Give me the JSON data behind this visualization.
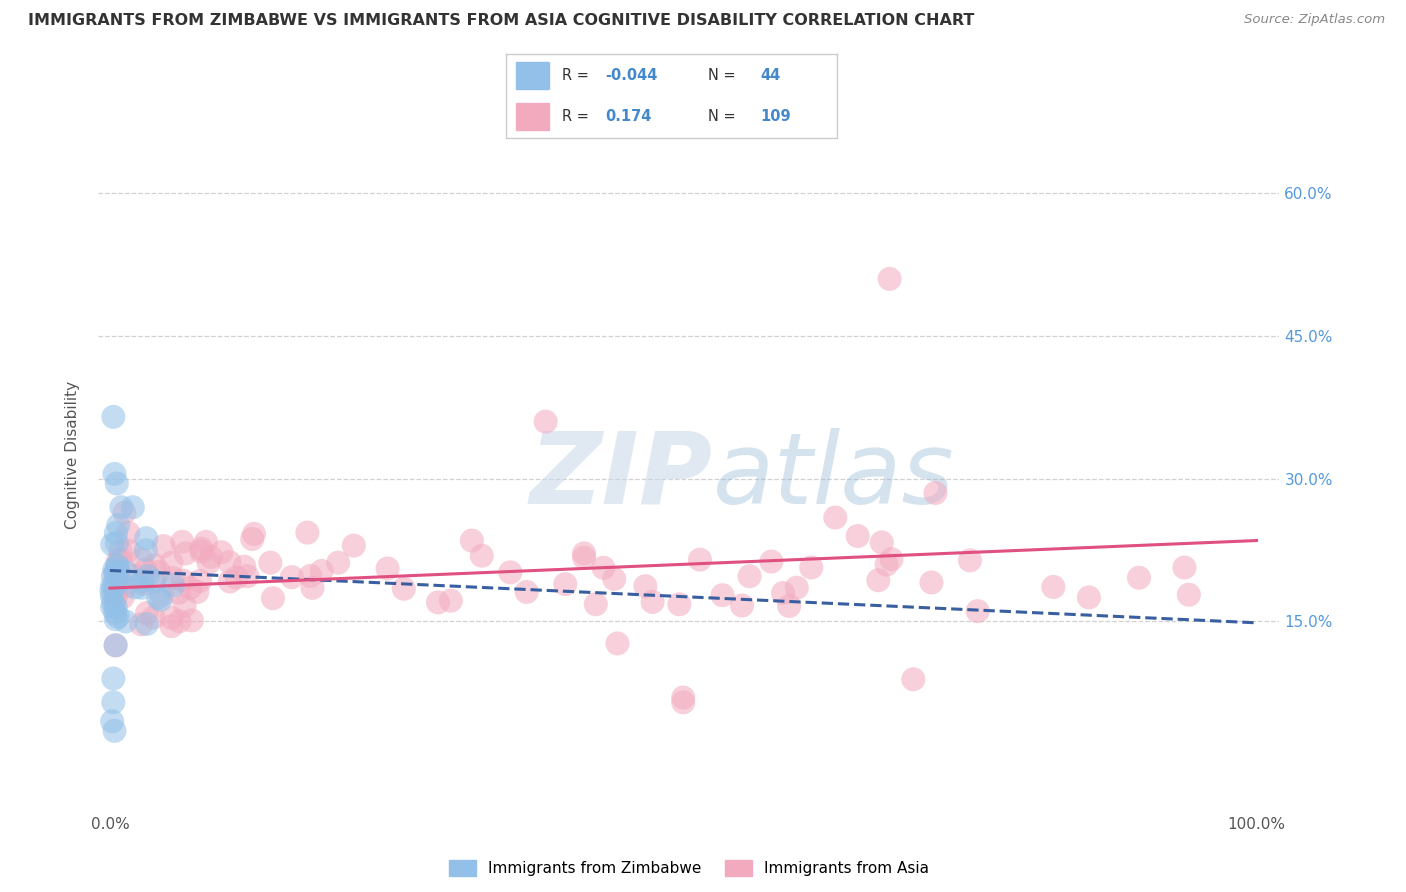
{
  "title": "IMMIGRANTS FROM ZIMBABWE VS IMMIGRANTS FROM ASIA COGNITIVE DISABILITY CORRELATION CHART",
  "source": "Source: ZipAtlas.com",
  "ylabel": "Cognitive Disability",
  "blue_color": "#92C0E8",
  "pink_color": "#F2AABF",
  "blue_line_color": "#3A5FA0",
  "pink_line_color": "#E05080",
  "background_color": "#FFFFFF",
  "grid_color": "#CCCCCC",
  "legend_R1": "-0.044",
  "legend_N1": "44",
  "legend_R2": "0.174",
  "legend_N2": "109",
  "ytick_vals": [
    0.15,
    0.3,
    0.45,
    0.6
  ],
  "ytick_labels": [
    "15.0%",
    "30.0%",
    "45.0%",
    "60.0%"
  ],
  "ylim_low": -0.05,
  "ylim_high": 0.7,
  "xlim_low": -0.01,
  "xlim_high": 1.02
}
